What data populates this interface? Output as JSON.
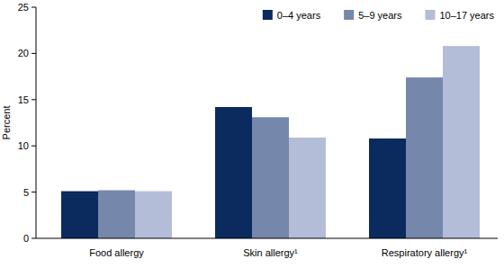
{
  "chart_data": {
    "type": "bar",
    "y_label": "Percent",
    "categories": [
      "Food allergy",
      "Skin allergy¹",
      "Respiratory allergy¹"
    ],
    "series": [
      {
        "name": "0–4 years",
        "color": "#0b2b5e",
        "values": [
          5.1,
          14.2,
          10.8
        ]
      },
      {
        "name": "5–9 years",
        "color": "#7587aa",
        "values": [
          5.2,
          13.1,
          17.4
        ]
      },
      {
        "name": "10–17 years",
        "color": "#b4bdd7",
        "values": [
          5.1,
          10.9,
          20.8
        ]
      }
    ],
    "ylim": [
      0,
      25
    ],
    "yticks": [
      0,
      5,
      10,
      15,
      20,
      25
    ],
    "grid": false,
    "legend": "top-right"
  }
}
